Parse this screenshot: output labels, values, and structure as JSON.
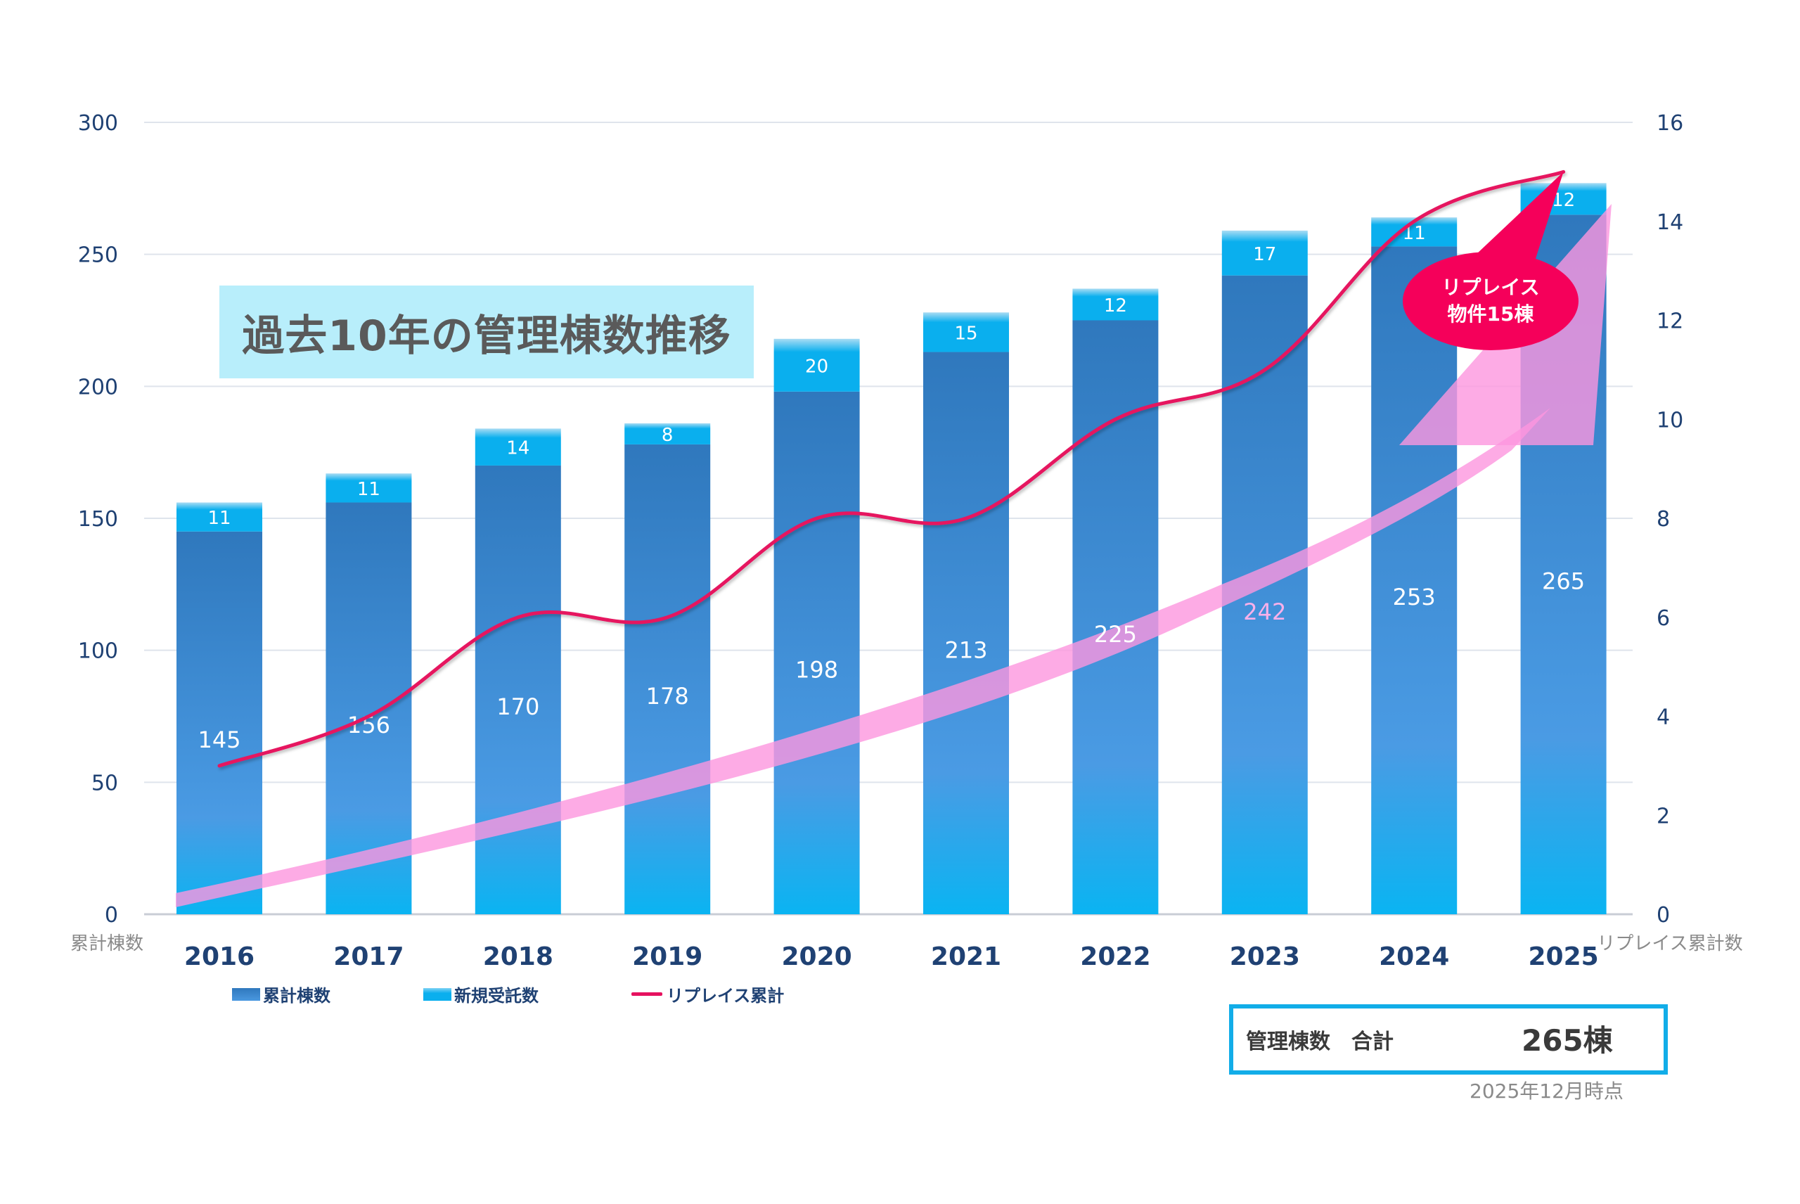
{
  "title": "過去10年の管理棟数推移",
  "chart_data": {
    "type": "bar",
    "stacked": true,
    "title": "過去10年の管理棟数推移",
    "categories": [
      "2016",
      "2017",
      "2018",
      "2019",
      "2020",
      "2021",
      "2022",
      "2023",
      "2024",
      "2025"
    ],
    "series": [
      {
        "name": "累計棟数",
        "type": "bar",
        "axis": "left",
        "color": "#2f78bd",
        "values": [
          145,
          156,
          170,
          178,
          198,
          213,
          225,
          242,
          253,
          265
        ]
      },
      {
        "name": "新規受託数",
        "type": "bar",
        "axis": "left",
        "color": "#0aafee",
        "values": [
          11,
          11,
          14,
          8,
          20,
          15,
          12,
          17,
          11,
          12
        ]
      },
      {
        "name": "リプレイス累計",
        "type": "line",
        "axis": "right",
        "color": "#e6125f",
        "values": [
          3,
          4,
          6,
          6,
          8,
          8,
          10,
          11,
          14,
          15
        ]
      }
    ],
    "ylabel": "累計棟数",
    "y2label": "リプレイス累計数",
    "ylim": [
      0,
      300
    ],
    "yticks": [
      0,
      50,
      100,
      150,
      200,
      250,
      300
    ],
    "y2lim": [
      0,
      16
    ],
    "y2ticks": [
      0,
      2,
      4,
      6,
      8,
      10,
      12,
      14,
      16
    ],
    "grid": true,
    "legend": "bottom-left",
    "annotations": [
      {
        "type": "callout",
        "text_lines": [
          "リプレイス",
          "物件15棟"
        ],
        "target_category": "2025",
        "color": "#f5005a"
      },
      {
        "type": "growth-arrow",
        "color": "#fda8e5"
      }
    ],
    "highlight_label_color": {
      "2023": "#f9b0ea"
    }
  },
  "legend": [
    {
      "label": "累計棟数",
      "kind": "bar-cumulative"
    },
    {
      "label": "新規受託数",
      "kind": "bar-new"
    },
    {
      "label": "リプレイス累計",
      "kind": "line"
    }
  ],
  "summary": {
    "label": "管理棟数　合計",
    "value": "265棟",
    "as_of": "2025年12月時点"
  }
}
